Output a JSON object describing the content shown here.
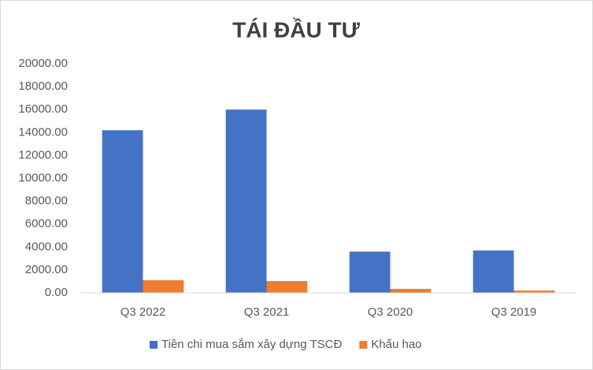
{
  "chart_data": {
    "type": "bar",
    "title": "TÁI ĐẦU TƯ",
    "categories": [
      "Q3 2022",
      "Q3 2021",
      "Q3 2020",
      "Q3 2019"
    ],
    "series": [
      {
        "name": "Tiền chi mua sắm xây dựng TSCĐ",
        "color": "#4472c4",
        "values": [
          14200,
          16000,
          3600,
          3700
        ]
      },
      {
        "name": "Khấu hao",
        "color": "#ed7d31",
        "values": [
          1100,
          1030,
          350,
          200
        ]
      }
    ],
    "ylim": [
      0,
      20000
    ],
    "yticks": [
      {
        "value": 0,
        "label": "0.00"
      },
      {
        "value": 2000,
        "label": "2000.00"
      },
      {
        "value": 4000,
        "label": "4000.00"
      },
      {
        "value": 6000,
        "label": "6000.00"
      },
      {
        "value": 8000,
        "label": "8000.00"
      },
      {
        "value": 10000,
        "label": "10000.00"
      },
      {
        "value": 12000,
        "label": "12000.00"
      },
      {
        "value": 14000,
        "label": "14000.00"
      },
      {
        "value": 16000,
        "label": "16000.00"
      },
      {
        "value": 18000,
        "label": "18000.00"
      },
      {
        "value": 20000,
        "label": "20000.00"
      }
    ],
    "grid": false,
    "legend": "bottom"
  }
}
